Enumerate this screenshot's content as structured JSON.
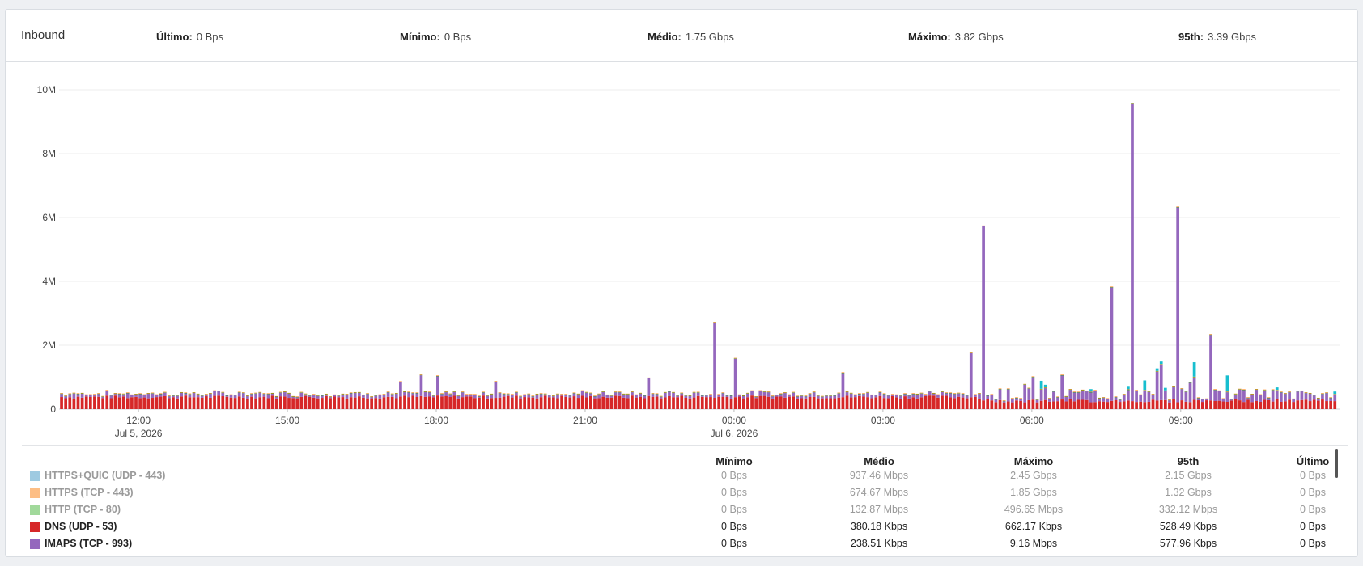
{
  "header": {
    "title": "Inbound",
    "stats": [
      {
        "label": "Último:",
        "value": "0 Bps"
      },
      {
        "label": "Mínimo:",
        "value": "0 Bps"
      },
      {
        "label": "Médio:",
        "value": "1.75 Gbps"
      },
      {
        "label": "Máximo:",
        "value": "3.82 Gbps"
      },
      {
        "label": "95th:",
        "value": "3.39 Gbps"
      }
    ]
  },
  "legend": {
    "columns": [
      "Mínimo",
      "Médio",
      "Máximo",
      "95th",
      "Último"
    ],
    "rows": [
      {
        "name": "HTTPS+QUIC (UDP - 443)",
        "color": "#9ecae1",
        "active": false,
        "values": [
          "0 Bps",
          "937.46 Mbps",
          "2.45 Gbps",
          "2.15 Gbps",
          "0 Bps"
        ]
      },
      {
        "name": "HTTPS (TCP - 443)",
        "color": "#fdbe85",
        "active": false,
        "values": [
          "0 Bps",
          "674.67 Mbps",
          "1.85 Gbps",
          "1.32 Gbps",
          "0 Bps"
        ]
      },
      {
        "name": "HTTP (TCP - 80)",
        "color": "#a1d99b",
        "active": false,
        "values": [
          "0 Bps",
          "132.87 Mbps",
          "496.65 Mbps",
          "332.12 Mbps",
          "0 Bps"
        ]
      },
      {
        "name": "DNS (UDP - 53)",
        "color": "#d62728",
        "active": true,
        "values": [
          "0 Bps",
          "380.18 Kbps",
          "662.17 Kbps",
          "528.49 Kbps",
          "0 Bps"
        ]
      },
      {
        "name": "IMAPS (TCP - 993)",
        "color": "#9467bd",
        "active": true,
        "values": [
          "0 Bps",
          "238.51 Kbps",
          "9.16 Mbps",
          "577.96 Kbps",
          "0 Bps"
        ]
      }
    ]
  },
  "chart_data": {
    "type": "bar",
    "stacked": true,
    "ylim": [
      0,
      10
    ],
    "y_unit": "M",
    "y_ticks": [
      {
        "value": 0,
        "label": "0"
      },
      {
        "value": 2,
        "label": "2M"
      },
      {
        "value": 4,
        "label": "4M"
      },
      {
        "value": 6,
        "label": "6M"
      },
      {
        "value": 8,
        "label": "8M"
      },
      {
        "value": 10,
        "label": "10M"
      }
    ],
    "x_range_hours": [
      10.4,
      36.2
    ],
    "x_ticks": [
      {
        "hour": 12,
        "label": "12:00",
        "sublabel": "Jul 5, 2026"
      },
      {
        "hour": 15,
        "label": "15:00",
        "sublabel": ""
      },
      {
        "hour": 18,
        "label": "18:00",
        "sublabel": ""
      },
      {
        "hour": 21,
        "label": "21:00",
        "sublabel": ""
      },
      {
        "hour": 24,
        "label": "00:00",
        "sublabel": "Jul 6, 2026"
      },
      {
        "hour": 27,
        "label": "03:00",
        "sublabel": ""
      },
      {
        "hour": 30,
        "label": "06:00",
        "sublabel": ""
      },
      {
        "hour": 33,
        "label": "09:00",
        "sublabel": ""
      }
    ],
    "grid": true,
    "legend_position": "bottom",
    "series": [
      {
        "key": "dns",
        "color": "#d62728"
      },
      {
        "key": "imaps",
        "color": "#9467bd"
      },
      {
        "key": "http",
        "color": "#2ca02c"
      },
      {
        "key": "https",
        "color": "#ff7f0e"
      },
      {
        "key": "quic",
        "color": "#17becf"
      }
    ],
    "spikes_M": [
      {
        "hour": 10.7,
        "imaps": 0.15
      },
      {
        "hour": 17.3,
        "imaps": 0.45
      },
      {
        "hour": 17.7,
        "imaps": 0.65
      },
      {
        "hour": 18.0,
        "imaps": 0.6
      },
      {
        "hour": 19.2,
        "imaps": 0.5
      },
      {
        "hour": 22.3,
        "imaps": 0.55
      },
      {
        "hour": 23.6,
        "imaps": 2.35
      },
      {
        "hour": 24.0,
        "imaps": 1.2
      },
      {
        "hour": 26.2,
        "imaps": 0.75
      },
      {
        "hour": 28.8,
        "imaps": 1.4
      },
      {
        "hour": 29.0,
        "imaps": 5.45
      },
      {
        "hour": 29.9,
        "imaps": 0.55
      },
      {
        "hour": 30.0,
        "imaps": 0.7
      },
      {
        "hour": 30.2,
        "imaps": 0.35,
        "quic": 0.25
      },
      {
        "hour": 30.6,
        "imaps": 0.75
      },
      {
        "hour": 31.3,
        "imaps": 0.35
      },
      {
        "hour": 31.6,
        "imaps": 3.55
      },
      {
        "hour": 32.0,
        "imaps": 9.3
      },
      {
        "hour": 32.25,
        "imaps": 0.35,
        "quic": 0.3
      },
      {
        "hour": 32.5,
        "imaps": 0.9
      },
      {
        "hour": 32.6,
        "imaps": 1.1
      },
      {
        "hour": 32.9,
        "imaps": 6.1
      },
      {
        "hour": 33.2,
        "imaps": 0.6
      },
      {
        "hour": 33.25,
        "imaps": 0.7,
        "quic": 0.45
      },
      {
        "hour": 33.6,
        "imaps": 2.05
      },
      {
        "hour": 33.9,
        "imaps": 0.3,
        "quic": 0.5
      }
    ]
  }
}
